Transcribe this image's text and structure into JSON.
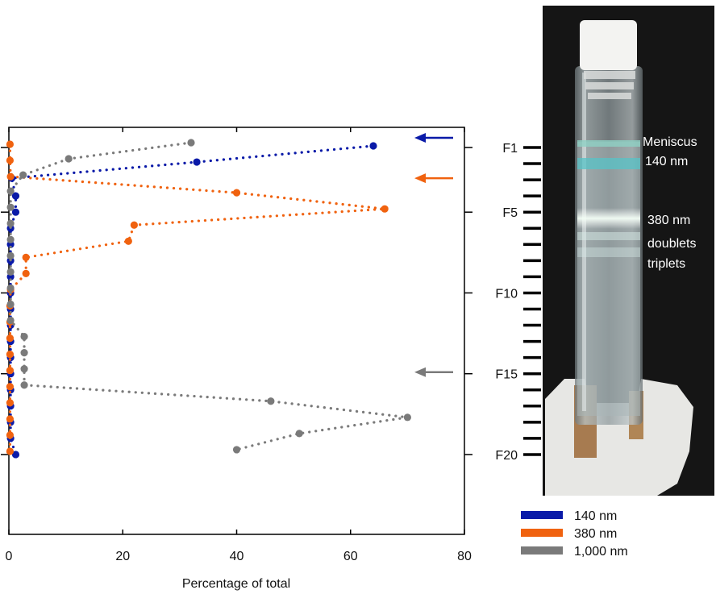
{
  "chart_data": {
    "type": "scatter",
    "xlabel": "Percentage of total",
    "xlim": [
      0,
      80
    ],
    "x_ticks": [
      0,
      20,
      40,
      60,
      80
    ],
    "ylim": [
      0,
      21.5
    ],
    "y_ticks": [
      {
        "value": 1,
        "label": "F1"
      },
      {
        "value": 5,
        "label": "F5"
      },
      {
        "value": 10,
        "label": "F10"
      },
      {
        "value": 15,
        "label": "F15"
      },
      {
        "value": 20,
        "label": "F20"
      }
    ],
    "series": [
      {
        "name": "140 nm",
        "color": "#0a1aa8",
        "arrow_fraction": 1,
        "points": [
          {
            "fraction": 0.9,
            "percentage": 64
          },
          {
            "fraction": 1.9,
            "percentage": 33
          },
          {
            "fraction": 2.9,
            "percentage": 0.5
          },
          {
            "fraction": 4.0,
            "percentage": 1.2
          },
          {
            "fraction": 5.0,
            "percentage": 1.2
          },
          {
            "fraction": 6.0,
            "percentage": 0.3
          },
          {
            "fraction": 7.0,
            "percentage": 0.3
          },
          {
            "fraction": 8.0,
            "percentage": 0.3
          },
          {
            "fraction": 9.0,
            "percentage": 0.3
          },
          {
            "fraction": 10.0,
            "percentage": 0.3
          },
          {
            "fraction": 11.0,
            "percentage": 0.3
          },
          {
            "fraction": 12.0,
            "percentage": 0.3
          },
          {
            "fraction": 13.0,
            "percentage": 0.3
          },
          {
            "fraction": 14.0,
            "percentage": 0.3
          },
          {
            "fraction": 15.0,
            "percentage": 0.3
          },
          {
            "fraction": 16.0,
            "percentage": 0.3
          },
          {
            "fraction": 17.0,
            "percentage": 0.3
          },
          {
            "fraction": 18.0,
            "percentage": 0.3
          },
          {
            "fraction": 19.0,
            "percentage": 0.3
          },
          {
            "fraction": 20.0,
            "percentage": 1.2
          }
        ]
      },
      {
        "name": "380 nm",
        "color": "#f0620f",
        "arrow_fraction": 3.5,
        "points": [
          {
            "fraction": 0.8,
            "percentage": 0.2
          },
          {
            "fraction": 1.8,
            "percentage": 0.2
          },
          {
            "fraction": 2.8,
            "percentage": 0.3
          },
          {
            "fraction": 3.8,
            "percentage": 40
          },
          {
            "fraction": 4.8,
            "percentage": 66
          },
          {
            "fraction": 5.8,
            "percentage": 22
          },
          {
            "fraction": 6.8,
            "percentage": 21
          },
          {
            "fraction": 7.8,
            "percentage": 3
          },
          {
            "fraction": 8.8,
            "percentage": 3
          },
          {
            "fraction": 9.8,
            "percentage": 0.3
          },
          {
            "fraction": 10.8,
            "percentage": 0.2
          },
          {
            "fraction": 11.8,
            "percentage": 0.2
          },
          {
            "fraction": 12.8,
            "percentage": 0.2
          },
          {
            "fraction": 13.8,
            "percentage": 0.2
          },
          {
            "fraction": 14.8,
            "percentage": 0.2
          },
          {
            "fraction": 15.8,
            "percentage": 0.2
          },
          {
            "fraction": 16.8,
            "percentage": 0.2
          },
          {
            "fraction": 17.8,
            "percentage": 0.2
          },
          {
            "fraction": 18.8,
            "percentage": 0.2
          },
          {
            "fraction": 19.8,
            "percentage": 0.2
          }
        ]
      },
      {
        "name": "1,000 nm",
        "color": "#7a7a7a",
        "arrow_fraction": 15.5,
        "points": [
          {
            "fraction": 0.7,
            "percentage": 32
          },
          {
            "fraction": 1.7,
            "percentage": 10.5
          },
          {
            "fraction": 2.7,
            "percentage": 2.5
          },
          {
            "fraction": 3.7,
            "percentage": 0.3
          },
          {
            "fraction": 4.7,
            "percentage": 0.3
          },
          {
            "fraction": 5.7,
            "percentage": 0.3
          },
          {
            "fraction": 6.7,
            "percentage": 0.3
          },
          {
            "fraction": 7.7,
            "percentage": 0.3
          },
          {
            "fraction": 8.7,
            "percentage": 0.3
          },
          {
            "fraction": 9.7,
            "percentage": 0.3
          },
          {
            "fraction": 10.7,
            "percentage": 0.3
          },
          {
            "fraction": 11.7,
            "percentage": 0.3
          },
          {
            "fraction": 12.7,
            "percentage": 2.7
          },
          {
            "fraction": 13.7,
            "percentage": 2.7
          },
          {
            "fraction": 14.7,
            "percentage": 2.7
          },
          {
            "fraction": 15.7,
            "percentage": 2.7
          },
          {
            "fraction": 16.7,
            "percentage": 46
          },
          {
            "fraction": 17.7,
            "percentage": 70
          },
          {
            "fraction": 18.7,
            "percentage": 51
          },
          {
            "fraction": 19.7,
            "percentage": 40
          }
        ]
      }
    ],
    "photo_labels": [
      "Meniscus",
      "140 nm",
      "380 nm",
      "doublets",
      "triplets"
    ],
    "legend": {
      "placement": "bottom-right",
      "entries": [
        {
          "label": "140 nm",
          "color": "#0a1aa8"
        },
        {
          "label": "380 nm",
          "color": "#f0620f"
        },
        {
          "label": "1,000 nm",
          "color": "#7a7a7a"
        }
      ]
    }
  }
}
